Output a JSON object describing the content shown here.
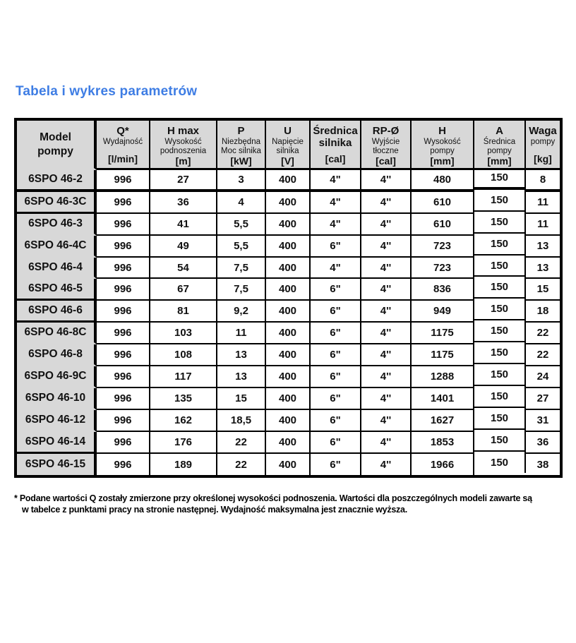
{
  "title": "Tabela i wykres parametrów",
  "colors": {
    "title": "#3e7de4",
    "header_bg": "#d8d8d8",
    "border": "#000000"
  },
  "table": {
    "columns": [
      {
        "key": "model",
        "name": "Model\npompy",
        "sub": "",
        "unit": ""
      },
      {
        "key": "q",
        "name": "Q*",
        "sub": "Wydajność",
        "unit": "[l/min]"
      },
      {
        "key": "hmax",
        "name": "H max",
        "sub": "Wysokość\npodnoszenia",
        "unit": "[m]"
      },
      {
        "key": "p",
        "name": "P",
        "sub": "Niezbędna\nMoc silnika",
        "unit": "[kW]"
      },
      {
        "key": "u",
        "name": "U",
        "sub": "Napięcie\nsilnika",
        "unit": "[V]"
      },
      {
        "key": "srednica",
        "name": "Średnica\nsilnika",
        "sub": "",
        "unit": "[cal]"
      },
      {
        "key": "rp",
        "name": "RP-Ø",
        "sub": "Wyjście\ntłoczne",
        "unit": "[cal]"
      },
      {
        "key": "h",
        "name": "H",
        "sub": "Wysokość\npompy",
        "unit": "[mm]"
      },
      {
        "key": "a",
        "name": "A",
        "sub": "Średnica\npompy",
        "unit": "[mm]"
      },
      {
        "key": "waga",
        "name": "Waga",
        "sub": "pompy",
        "unit": "[kg]"
      }
    ],
    "rows": [
      {
        "model": "6SPO 46-2",
        "values": [
          "996",
          "27",
          "3",
          "400",
          "4\"",
          "4''",
          "480",
          "150",
          "8"
        ],
        "model_line_below": true,
        "thick_below": true
      },
      {
        "model": "6SPO 46-3C",
        "values": [
          "996",
          "36",
          "4",
          "400",
          "4\"",
          "4''",
          "610",
          "150",
          "11"
        ],
        "model_line_below": true,
        "thick_below": false
      },
      {
        "model": "6SPO 46-3",
        "values": [
          "996",
          "41",
          "5,5",
          "400",
          "4\"",
          "4''",
          "610",
          "150",
          "11"
        ],
        "model_line_below": false,
        "thick_below": false
      },
      {
        "model": "6SPO 46-4C",
        "values": [
          "996",
          "49",
          "5,5",
          "400",
          "6\"",
          "4''",
          "723",
          "150",
          "13"
        ],
        "model_line_below": false,
        "thick_below": false
      },
      {
        "model": "6SPO 46-4",
        "values": [
          "996",
          "54",
          "7,5",
          "400",
          "4\"",
          "4''",
          "723",
          "150",
          "13"
        ],
        "model_line_below": false,
        "thick_below": false
      },
      {
        "model": "6SPO 46-5",
        "values": [
          "996",
          "67",
          "7,5",
          "400",
          "6\"",
          "4''",
          "836",
          "150",
          "15"
        ],
        "model_line_below": true,
        "thick_below": false
      },
      {
        "model": "6SPO 46-6",
        "values": [
          "996",
          "81",
          "9,2",
          "400",
          "6\"",
          "4''",
          "949",
          "150",
          "18"
        ],
        "model_line_below": true,
        "thick_below": false
      },
      {
        "model": "6SPO 46-8C",
        "values": [
          "996",
          "103",
          "11",
          "400",
          "6\"",
          "4''",
          "1175",
          "150",
          "22"
        ],
        "model_line_below": false,
        "thick_below": false
      },
      {
        "model": "6SPO 46-8",
        "values": [
          "996",
          "108",
          "13",
          "400",
          "6\"",
          "4''",
          "1175",
          "150",
          "22"
        ],
        "model_line_below": false,
        "thick_below": false
      },
      {
        "model": "6SPO 46-9C",
        "values": [
          "996",
          "117",
          "13",
          "400",
          "6\"",
          "4''",
          "1288",
          "150",
          "24"
        ],
        "model_line_below": false,
        "thick_below": false
      },
      {
        "model": "6SPO 46-10",
        "values": [
          "996",
          "135",
          "15",
          "400",
          "6\"",
          "4''",
          "1401",
          "150",
          "27"
        ],
        "model_line_below": false,
        "thick_below": false
      },
      {
        "model": "6SPO 46-12",
        "values": [
          "996",
          "162",
          "18,5",
          "400",
          "6\"",
          "4''",
          "1627",
          "150",
          "31"
        ],
        "model_line_below": false,
        "thick_below": false
      },
      {
        "model": "6SPO 46-14",
        "values": [
          "996",
          "176",
          "22",
          "400",
          "6\"",
          "4''",
          "1853",
          "150",
          "36"
        ],
        "model_line_below": true,
        "thick_below": false
      },
      {
        "model": "6SPO 46-15",
        "values": [
          "996",
          "189",
          "22",
          "400",
          "6\"",
          "4''",
          "1966",
          "150",
          "38"
        ],
        "model_line_below": false,
        "thick_below": false
      }
    ]
  },
  "footnote": {
    "line1": "* Podane wartości Q zostały zmierzone przy określonej wysokości podnoszenia. Wartości dla poszczególnych modeli zawarte są",
    "line2": "w tabelce z punktami pracy na stronie następnej. Wydajność maksymalna jest znacznie wyższa."
  }
}
